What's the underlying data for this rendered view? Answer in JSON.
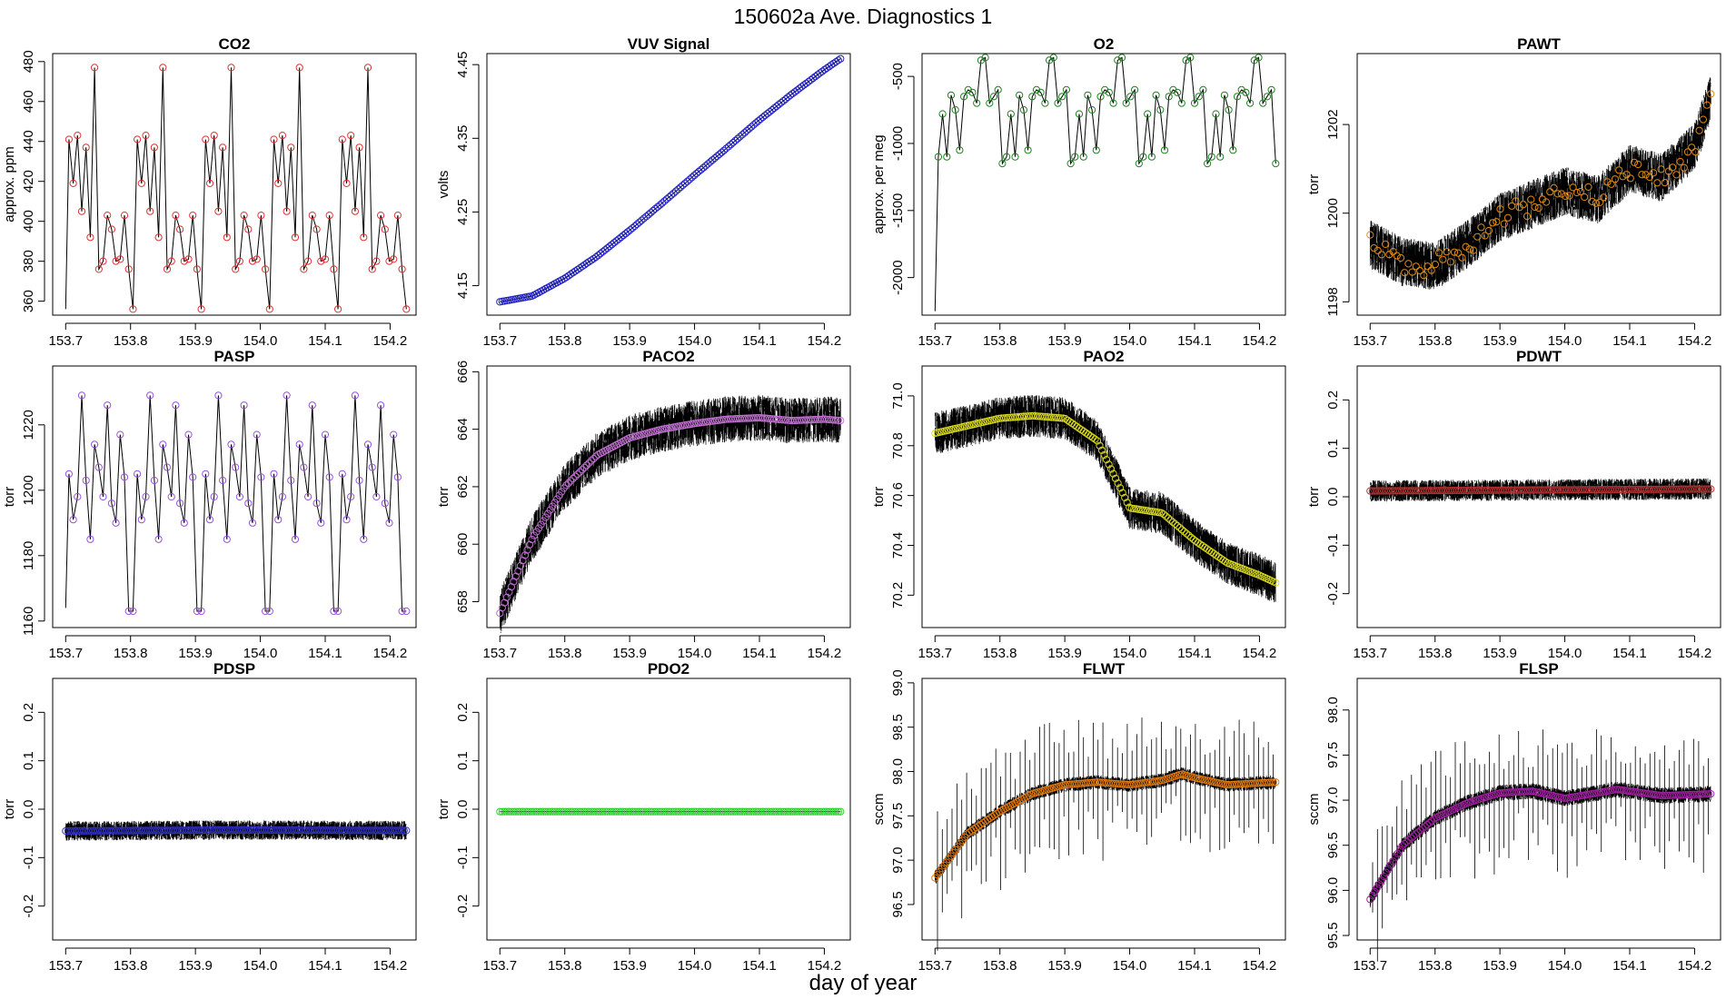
{
  "figure": {
    "title": "150602a   Ave. Diagnostics 1",
    "xlabel": "day of year"
  },
  "chart_data": [
    {
      "type": "line",
      "title": "CO2",
      "ylabel": "approx. ppm",
      "xlim": [
        153.68,
        154.24
      ],
      "ylim": [
        353,
        484
      ],
      "yticks": [
        360,
        380,
        400,
        420,
        440,
        460,
        480
      ],
      "ytick_labels": [
        "360",
        "380",
        "400",
        "420",
        "440",
        "460",
        "480"
      ],
      "xticks": [
        153.7,
        153.8,
        153.9,
        154.0,
        154.1,
        154.2
      ],
      "xtick_labels": [
        "153.7",
        "153.8",
        "153.9",
        "154.0",
        "154.1",
        "154.2"
      ],
      "marker_color": "#e03030",
      "marker_start": 153.705,
      "marker_end": 154.225,
      "cycle": [
        441,
        419,
        443,
        405,
        437,
        392,
        477,
        376,
        380,
        403,
        396,
        380,
        381,
        403,
        376,
        356
      ],
      "pre": [
        356
      ]
    },
    {
      "type": "line",
      "title": "VUV Signal",
      "ylabel": "volts",
      "xlim": [
        153.68,
        154.24
      ],
      "ylim": [
        4.11,
        4.465
      ],
      "yticks": [
        4.15,
        4.25,
        4.35,
        4.45
      ],
      "ytick_labels": [
        "4.15",
        "4.25",
        "4.35",
        "4.45"
      ],
      "xticks": [
        153.7,
        153.8,
        153.9,
        154.0,
        154.1,
        154.2
      ],
      "xtick_labels": [
        "153.7",
        "153.8",
        "153.9",
        "154.0",
        "154.1",
        "154.2"
      ],
      "marker_color": "#2020c0",
      "marker_start": 153.7,
      "marker_end": 154.225,
      "curve": [
        [
          153.7,
          4.128
        ],
        [
          153.75,
          4.136
        ],
        [
          153.8,
          4.16
        ],
        [
          153.85,
          4.19
        ],
        [
          153.9,
          4.225
        ],
        [
          153.95,
          4.262
        ],
        [
          154.0,
          4.3
        ],
        [
          154.05,
          4.337
        ],
        [
          154.1,
          4.375
        ],
        [
          154.15,
          4.41
        ],
        [
          154.2,
          4.443
        ],
        [
          154.225,
          4.458
        ]
      ]
    },
    {
      "type": "line",
      "title": "O2",
      "ylabel": "approx. per meg",
      "xlim": [
        153.68,
        154.24
      ],
      "ylim": [
        -2280,
        -330
      ],
      "yticks": [
        -2000,
        -1500,
        -1000,
        -500
      ],
      "ytick_labels": [
        "-2000",
        "-1500",
        "-1000",
        "-500"
      ],
      "xticks": [
        153.7,
        153.8,
        153.9,
        154.0,
        154.1,
        154.2
      ],
      "xtick_labels": [
        "153.7",
        "153.8",
        "153.9",
        "154.0",
        "154.1",
        "154.2"
      ],
      "marker_color": "#208020",
      "marker_start": 153.705,
      "marker_end": 154.225,
      "cycle": [
        -1100,
        -780,
        -1100,
        -640,
        -750,
        -1050,
        -650,
        -600,
        -620,
        -700,
        -380,
        -360,
        -700,
        -650,
        -600,
        -1150
      ],
      "pre": [
        -2250
      ]
    },
    {
      "type": "line",
      "title": "PAWT",
      "ylabel": "torr",
      "xlim": [
        153.68,
        154.24
      ],
      "ylim": [
        1197.7,
        1203.6
      ],
      "yticks": [
        1198,
        1200,
        1202
      ],
      "ytick_labels": [
        "1198",
        "1200",
        "1202"
      ],
      "xticks": [
        153.7,
        153.8,
        153.9,
        154.0,
        154.1,
        154.2
      ],
      "xtick_labels": [
        "153.7",
        "153.8",
        "153.9",
        "154.0",
        "154.1",
        "154.2"
      ],
      "marker_color": "#e08a10",
      "marker_start": 153.7,
      "marker_end": 154.225,
      "noise": 0.55,
      "curve": [
        [
          153.7,
          1199.3
        ],
        [
          153.75,
          1198.9
        ],
        [
          153.8,
          1198.8
        ],
        [
          153.85,
          1199.3
        ],
        [
          153.9,
          1199.9
        ],
        [
          153.95,
          1200.2
        ],
        [
          154.0,
          1200.5
        ],
        [
          154.05,
          1200.3
        ],
        [
          154.1,
          1201.0
        ],
        [
          154.15,
          1200.8
        ],
        [
          154.2,
          1201.5
        ],
        [
          154.225,
          1202.6
        ]
      ]
    },
    {
      "type": "line",
      "title": "PASP",
      "ylabel": "torr",
      "xlim": [
        153.68,
        154.24
      ],
      "ylim": [
        1158,
        1238
      ],
      "yticks": [
        1160,
        1180,
        1200,
        1220
      ],
      "ytick_labels": [
        "1160",
        "1180",
        "1200",
        "1220"
      ],
      "xticks": [
        153.7,
        153.8,
        153.9,
        154.0,
        154.1,
        154.2
      ],
      "xtick_labels": [
        "153.7",
        "153.8",
        "153.9",
        "154.0",
        "154.1",
        "154.2"
      ],
      "marker_color": "#9a50e0",
      "marker_start": 153.705,
      "marker_end": 154.225,
      "cycle": [
        1205,
        1191,
        1198,
        1229,
        1203,
        1185,
        1214,
        1207,
        1198,
        1226,
        1196,
        1190,
        1217,
        1204,
        1163,
        1163
      ],
      "pre": [
        1164
      ]
    },
    {
      "type": "line",
      "title": "PACO2",
      "ylabel": "torr",
      "xlim": [
        153.68,
        154.24
      ],
      "ylim": [
        657.1,
        666.2
      ],
      "yticks": [
        658,
        660,
        662,
        664,
        666
      ],
      "ytick_labels": [
        "658",
        "660",
        "662",
        "664",
        "666"
      ],
      "xticks": [
        153.7,
        153.8,
        153.9,
        154.0,
        154.1,
        154.2
      ],
      "xtick_labels": [
        "153.7",
        "153.8",
        "153.9",
        "154.0",
        "154.1",
        "154.2"
      ],
      "marker_color": "#c070d0",
      "marker_start": 153.7,
      "marker_end": 154.225,
      "noise": 0.8,
      "curve": [
        [
          153.7,
          657.6
        ],
        [
          153.75,
          660.2
        ],
        [
          153.8,
          662.0
        ],
        [
          153.85,
          663.1
        ],
        [
          153.9,
          663.7
        ],
        [
          153.95,
          664.0
        ],
        [
          154.0,
          664.2
        ],
        [
          154.05,
          664.35
        ],
        [
          154.1,
          664.4
        ],
        [
          154.15,
          664.3
        ],
        [
          154.2,
          664.35
        ],
        [
          154.225,
          664.3
        ]
      ]
    },
    {
      "type": "line",
      "title": "PAO2",
      "ylabel": "torr",
      "xlim": [
        153.68,
        154.24
      ],
      "ylim": [
        70.07,
        71.12
      ],
      "yticks": [
        70.2,
        70.4,
        70.6,
        70.8,
        71.0
      ],
      "ytick_labels": [
        "70.2",
        "70.4",
        "70.6",
        "70.8",
        "71.0"
      ],
      "xticks": [
        153.7,
        153.8,
        153.9,
        154.0,
        154.1,
        154.2
      ],
      "xtick_labels": [
        "153.7",
        "153.8",
        "153.9",
        "154.0",
        "154.1",
        "154.2"
      ],
      "marker_color": "#d8d820",
      "marker_start": 153.7,
      "marker_end": 154.225,
      "noise": 0.085,
      "curve": [
        [
          153.7,
          70.85
        ],
        [
          153.75,
          70.88
        ],
        [
          153.8,
          70.91
        ],
        [
          153.85,
          70.92
        ],
        [
          153.9,
          70.91
        ],
        [
          153.95,
          70.82
        ],
        [
          153.98,
          70.66
        ],
        [
          154.0,
          70.55
        ],
        [
          154.05,
          70.53
        ],
        [
          154.1,
          70.42
        ],
        [
          154.15,
          70.33
        ],
        [
          154.2,
          70.28
        ],
        [
          154.225,
          70.25
        ]
      ]
    },
    {
      "type": "line",
      "title": "PDWT",
      "ylabel": "torr",
      "xlim": [
        153.68,
        154.24
      ],
      "ylim": [
        -0.27,
        0.27
      ],
      "yticks": [
        -0.2,
        -0.1,
        0.0,
        0.1,
        0.2
      ],
      "ytick_labels": [
        "-0.2",
        "-0.1",
        "0.0",
        "0.1",
        "0.2"
      ],
      "xticks": [
        153.7,
        153.8,
        153.9,
        154.0,
        154.1,
        154.2
      ],
      "xtick_labels": [
        "153.7",
        "153.8",
        "153.9",
        "154.0",
        "154.1",
        "154.2"
      ],
      "marker_color": "#b03030",
      "marker_start": 153.7,
      "marker_end": 154.225,
      "noise": 0.022,
      "curve": [
        [
          153.7,
          0.012
        ],
        [
          153.95,
          0.014
        ],
        [
          154.225,
          0.016
        ]
      ]
    },
    {
      "type": "line",
      "title": "PDSP",
      "ylabel": "torr",
      "xlim": [
        153.68,
        154.24
      ],
      "ylim": [
        -0.27,
        0.27
      ],
      "yticks": [
        -0.2,
        -0.1,
        0.0,
        0.1,
        0.2
      ],
      "ytick_labels": [
        "-0.2",
        "-0.1",
        "0.0",
        "0.1",
        "0.2"
      ],
      "xticks": [
        153.7,
        153.8,
        153.9,
        154.0,
        154.1,
        154.2
      ],
      "xtick_labels": [
        "153.7",
        "153.8",
        "153.9",
        "154.0",
        "154.1",
        "154.2"
      ],
      "marker_color": "#3030c0",
      "marker_start": 153.7,
      "marker_end": 154.225,
      "noise": 0.02,
      "curve": [
        [
          153.7,
          -0.045
        ],
        [
          153.95,
          -0.043
        ],
        [
          154.225,
          -0.044
        ]
      ]
    },
    {
      "type": "line",
      "title": "PDO2",
      "ylabel": "torr",
      "xlim": [
        153.68,
        154.24
      ],
      "ylim": [
        -0.27,
        0.27
      ],
      "yticks": [
        -0.2,
        -0.1,
        0.0,
        0.1,
        0.2
      ],
      "ytick_labels": [
        "-0.2",
        "-0.1",
        "0.0",
        "0.1",
        "0.2"
      ],
      "xticks": [
        153.7,
        153.8,
        153.9,
        154.0,
        154.1,
        154.2
      ],
      "xtick_labels": [
        "153.7",
        "153.8",
        "153.9",
        "154.0",
        "154.1",
        "154.2"
      ],
      "marker_color": "#30d030",
      "marker_start": 153.7,
      "marker_end": 154.225,
      "noise": 0.0,
      "curve": [
        [
          153.7,
          -0.005
        ],
        [
          154.225,
          -0.005
        ]
      ]
    },
    {
      "type": "line",
      "title": "FLWT",
      "ylabel": "sccm",
      "xlim": [
        153.68,
        154.24
      ],
      "ylim": [
        96.1,
        99.05
      ],
      "yticks": [
        96.5,
        97.0,
        97.5,
        98.0,
        98.5,
        99.0
      ],
      "ytick_labels": [
        "96.5",
        "97.0",
        "97.5",
        "98.0",
        "98.5",
        "99.0"
      ],
      "xticks": [
        153.7,
        153.8,
        153.9,
        154.0,
        154.1,
        154.2
      ],
      "xtick_labels": [
        "153.7",
        "153.8",
        "153.9",
        "154.0",
        "154.1",
        "154.2"
      ],
      "marker_color": "#e07a10",
      "marker_start": 153.7,
      "marker_end": 154.225,
      "noise": 0.08,
      "spike_up": 0.75,
      "spike_down": 0.9,
      "curve": [
        [
          153.7,
          96.8
        ],
        [
          153.75,
          97.3
        ],
        [
          153.8,
          97.55
        ],
        [
          153.85,
          97.75
        ],
        [
          153.9,
          97.85
        ],
        [
          153.95,
          97.88
        ],
        [
          154.0,
          97.85
        ],
        [
          154.05,
          97.9
        ],
        [
          154.08,
          97.97
        ],
        [
          154.1,
          97.93
        ],
        [
          154.15,
          97.85
        ],
        [
          154.225,
          97.88
        ]
      ]
    },
    {
      "type": "line",
      "title": "FLSP",
      "ylabel": "sccm",
      "xlim": [
        153.68,
        154.24
      ],
      "ylim": [
        95.45,
        98.35
      ],
      "yticks": [
        95.5,
        96.0,
        96.5,
        97.0,
        97.5,
        98.0
      ],
      "ytick_labels": [
        "95.5",
        "96.0",
        "96.5",
        "97.0",
        "97.5",
        "98.0"
      ],
      "xticks": [
        153.7,
        153.8,
        153.9,
        154.0,
        154.1,
        154.2
      ],
      "xtick_labels": [
        "153.7",
        "153.8",
        "153.9",
        "154.0",
        "154.1",
        "154.2"
      ],
      "marker_color": "#a020a0",
      "marker_start": 153.7,
      "marker_end": 154.225,
      "noise": 0.09,
      "spike_up": 0.75,
      "spike_down": 0.9,
      "curve": [
        [
          153.7,
          95.9
        ],
        [
          153.75,
          96.5
        ],
        [
          153.8,
          96.8
        ],
        [
          153.85,
          96.97
        ],
        [
          153.9,
          97.08
        ],
        [
          153.95,
          97.1
        ],
        [
          154.0,
          97.02
        ],
        [
          154.05,
          97.08
        ],
        [
          154.08,
          97.12
        ],
        [
          154.1,
          97.1
        ],
        [
          154.15,
          97.05
        ],
        [
          154.225,
          97.07
        ]
      ]
    }
  ]
}
